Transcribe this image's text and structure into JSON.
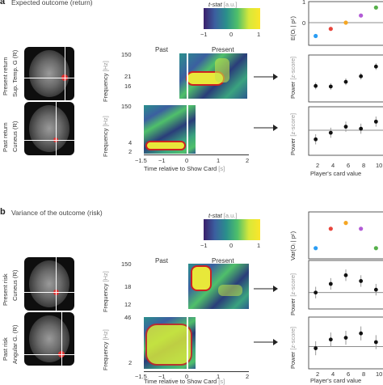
{
  "panel_a": {
    "letter": "a",
    "title": "Expected outcome (return)",
    "colorbar": {
      "label": "t-stat",
      "unit": "[a.u.]",
      "ticks": [
        "−1",
        "0",
        "1"
      ]
    },
    "row_labels": [
      {
        "group": "Present return",
        "region": "Sup. Temp. G (R)"
      },
      {
        "group": "Past return",
        "region": "Cuneus (R)"
      }
    ],
    "tf_headers": {
      "past": "Past",
      "present": "Present"
    },
    "tf_top_yticks": [
      "150",
      "21",
      "16"
    ],
    "tf_bottom_yticks": [
      "150",
      "4",
      "2"
    ],
    "tf_ylabel": "Frequency",
    "tf_yunit": "[Hz]",
    "tf_xticks": [
      "−1.5",
      "−1",
      "0",
      "1",
      "2"
    ],
    "tf_xlabel": "Time relative to Show Card",
    "tf_xunit": "[s]",
    "right_top_ylabel": "E(Oᵢ | pᶜ)",
    "right_top_yticks": [
      "1",
      "0"
    ],
    "right_power_label": "Power",
    "right_power_unit": "[z-score]",
    "right_xticks": [
      "2",
      "4",
      "6",
      "8",
      "10"
    ],
    "right_xlabel": "Player's card value"
  },
  "panel_b": {
    "letter": "b",
    "title": "Variance of the outcome (risk)",
    "colorbar": {
      "label": "t-stat",
      "unit": "[a.u.]",
      "ticks": [
        "−1",
        "0",
        "1"
      ]
    },
    "row_labels": [
      {
        "group": "Present risk",
        "region": "Cuneus (R)"
      },
      {
        "group": "Past risk",
        "region": "Angular G. (R)"
      }
    ],
    "tf_headers": {
      "past": "Past",
      "present": "Present"
    },
    "tf_top_yticks": [
      "150",
      "18",
      "12"
    ],
    "tf_bottom_yticks": [
      "46",
      "2"
    ],
    "tf_ylabel": "Frequency",
    "tf_yunit": "[Hz]",
    "tf_xticks": [
      "−1.5",
      "−1",
      "0",
      "1",
      "2"
    ],
    "tf_xlabel": "Time relative to Show Card",
    "tf_xunit": "[s]",
    "right_top_ylabel": "Var(Oᵢ | pᶜ)",
    "right_power_label": "Power",
    "right_power_unit": "[z-score]",
    "right_xticks": [
      "2",
      "4",
      "6",
      "8",
      "10"
    ],
    "right_xlabel": "Player's card value"
  },
  "colors": {
    "card2": "#2a9df4",
    "card4": "#e8453c",
    "card6": "#f5a623",
    "card8": "#b25bd6",
    "card10": "#56b04a",
    "contour": "#cc2222",
    "highlight": "#e03030"
  },
  "chart_data": [
    {
      "type": "scatter",
      "title": "",
      "xlabel": "Player's card value",
      "ylabel": "E(Oᵢ | pᶜ)",
      "x": [
        2,
        4,
        6,
        8,
        10
      ],
      "y": [
        -0.75,
        -0.35,
        0.0,
        0.4,
        0.85
      ],
      "ylim": [
        -1,
        1
      ]
    },
    {
      "type": "scatter",
      "xlabel": "Player's card value",
      "ylabel": "Power",
      "x": [
        2,
        4,
        6,
        8,
        10
      ],
      "y": [
        0.0,
        -0.02,
        0.15,
        0.35,
        0.7
      ],
      "err": [
        0.12,
        0.12,
        0.12,
        0.12,
        0.12
      ]
    },
    {
      "type": "scatter",
      "xlabel": "Player's card value",
      "ylabel": "Power",
      "x": [
        2,
        4,
        6,
        8,
        10
      ],
      "y": [
        -0.18,
        -0.05,
        0.07,
        0.03,
        0.17
      ],
      "err": [
        0.1,
        0.1,
        0.1,
        0.1,
        0.1
      ]
    },
    {
      "type": "scatter",
      "xlabel": "Player's card value",
      "ylabel": "Var(Oᵢ | pᶜ)",
      "x": [
        2,
        4,
        6,
        8,
        10
      ],
      "y": [
        0.15,
        0.65,
        0.8,
        0.65,
        0.15
      ]
    },
    {
      "type": "scatter",
      "xlabel": "Player's card value",
      "ylabel": "Power",
      "x": [
        2,
        4,
        6,
        8,
        10
      ],
      "y": [
        0.0,
        0.15,
        0.3,
        0.2,
        0.05
      ],
      "err": [
        0.1,
        0.1,
        0.1,
        0.1,
        0.1
      ]
    },
    {
      "type": "scatter",
      "xlabel": "Player's card value",
      "ylabel": "Power",
      "x": [
        2,
        4,
        6,
        8,
        10
      ],
      "y": [
        -0.02,
        0.08,
        0.1,
        0.15,
        0.05
      ],
      "err": [
        0.08,
        0.08,
        0.08,
        0.08,
        0.08
      ]
    }
  ]
}
